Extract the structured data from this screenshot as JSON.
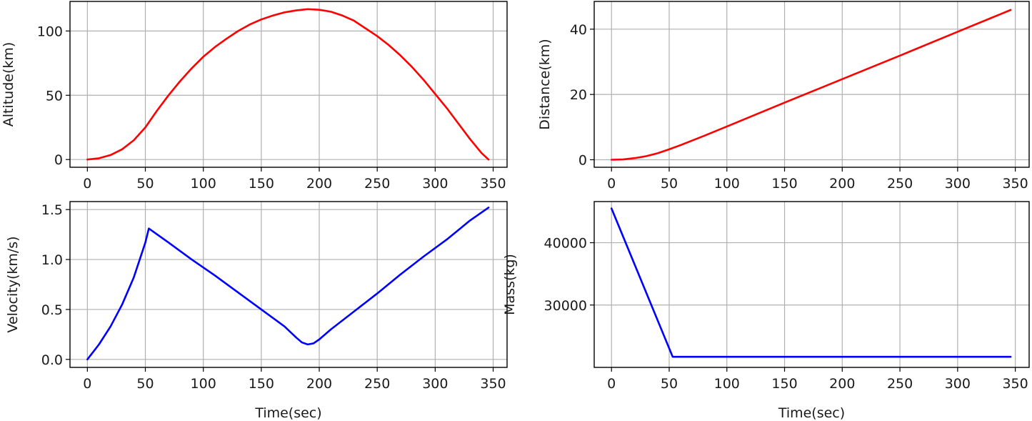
{
  "chart_data": [
    {
      "id": "altitude",
      "type": "line",
      "title": "",
      "xlabel": "",
      "ylabel": "Altitude(km)",
      "xlim": [
        -15,
        362
      ],
      "ylim": [
        -6,
        123
      ],
      "xticks": [
        0,
        50,
        100,
        150,
        200,
        250,
        300,
        350
      ],
      "yticks": [
        0,
        50,
        100
      ],
      "grid": true,
      "color": "#ff0000",
      "series": [
        {
          "x": [
            0,
            10,
            20,
            30,
            40,
            50,
            60,
            70,
            80,
            90,
            100,
            110,
            120,
            130,
            140,
            150,
            160,
            170,
            180,
            190,
            200,
            210,
            220,
            230,
            240,
            250,
            260,
            270,
            280,
            290,
            300,
            310,
            320,
            330,
            340,
            346
          ],
          "values": [
            0,
            1,
            3.5,
            8,
            15,
            25,
            38,
            50,
            61,
            71,
            80,
            87.5,
            94,
            100,
            105,
            109,
            112,
            114.5,
            116,
            117,
            116.5,
            115,
            112,
            108,
            102,
            96,
            89,
            81,
            72,
            62,
            51,
            40,
            28,
            16,
            5,
            0
          ]
        }
      ]
    },
    {
      "id": "distance",
      "type": "line",
      "title": "",
      "xlabel": "",
      "ylabel": "Distance(km)",
      "xlim": [
        -15,
        362
      ],
      "ylim": [
        -2.3,
        48.5
      ],
      "xticks": [
        0,
        50,
        100,
        150,
        200,
        250,
        300,
        350
      ],
      "yticks": [
        0,
        20,
        40
      ],
      "grid": true,
      "color": "#ff0000",
      "series": [
        {
          "x": [
            0,
            10,
            20,
            30,
            40,
            50,
            60,
            80,
            100,
            150,
            200,
            250,
            300,
            346
          ],
          "values": [
            0,
            0.1,
            0.5,
            1.1,
            2,
            3.2,
            4.5,
            7.3,
            10.2,
            17.5,
            24.7,
            31.9,
            39.2,
            45.9
          ]
        }
      ]
    },
    {
      "id": "velocity",
      "type": "line",
      "title": "",
      "xlabel": "Time(sec)",
      "ylabel": "Velocity(km/s)",
      "xlim": [
        -15,
        362
      ],
      "ylim": [
        -0.08,
        1.58
      ],
      "xticks": [
        0,
        50,
        100,
        150,
        200,
        250,
        300,
        350
      ],
      "yticks": [
        0.0,
        0.5,
        1.0,
        1.5
      ],
      "grid": true,
      "color": "#0000ff",
      "series": [
        {
          "x": [
            0,
            10,
            20,
            30,
            40,
            50,
            53,
            70,
            90,
            110,
            130,
            150,
            170,
            180,
            185,
            190,
            195,
            200,
            210,
            230,
            250,
            270,
            290,
            310,
            330,
            346
          ],
          "values": [
            0,
            0.15,
            0.33,
            0.55,
            0.82,
            1.17,
            1.31,
            1.17,
            1.0,
            0.84,
            0.67,
            0.5,
            0.33,
            0.22,
            0.17,
            0.15,
            0.16,
            0.2,
            0.3,
            0.48,
            0.66,
            0.85,
            1.03,
            1.2,
            1.39,
            1.52
          ]
        }
      ]
    },
    {
      "id": "mass",
      "type": "line",
      "title": "",
      "xlabel": "Time(sec)",
      "ylabel": "Mass(kg)",
      "xlim": [
        -15,
        362
      ],
      "ylim": [
        20000,
        46600
      ],
      "xticks": [
        0,
        50,
        100,
        150,
        200,
        250,
        300,
        350
      ],
      "yticks": [
        30000,
        40000
      ],
      "grid": true,
      "color": "#0000ff",
      "series": [
        {
          "x": [
            0,
            53,
            346
          ],
          "values": [
            45500,
            21700,
            21700
          ]
        }
      ]
    }
  ]
}
